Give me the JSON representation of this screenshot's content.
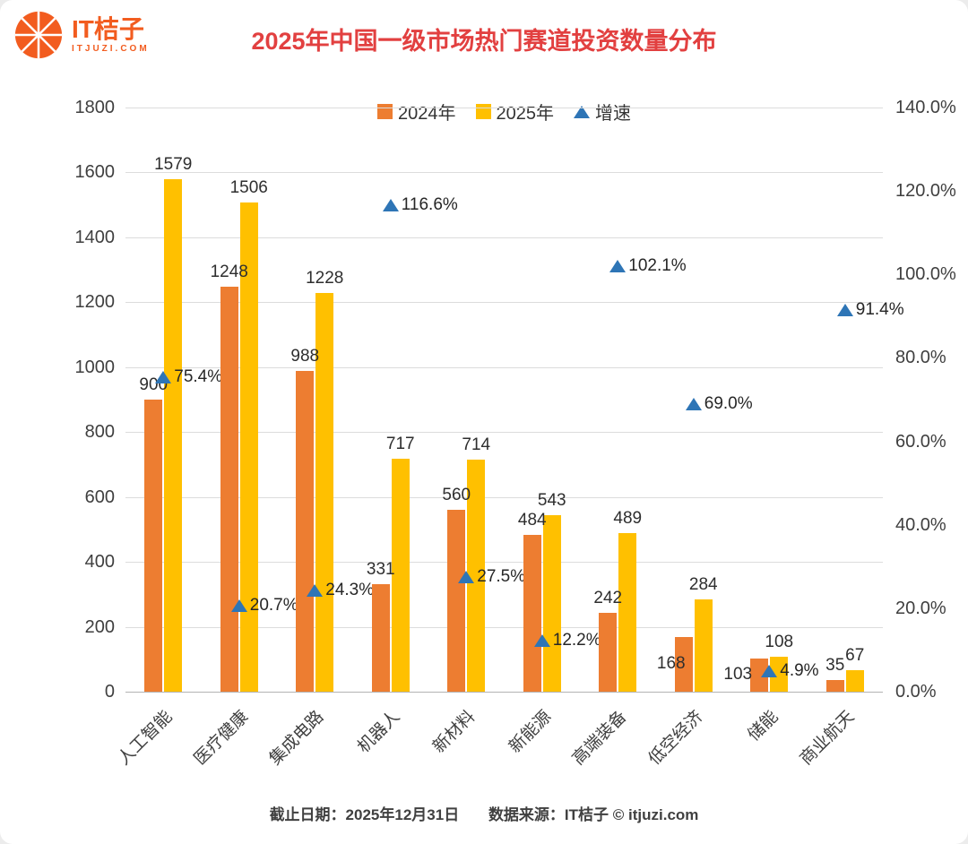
{
  "logo": {
    "name": "IT桔子",
    "domain": "ITJUZI.COM",
    "color": "#F25C1F"
  },
  "title": {
    "prefix": "2025年中国一级市场热门赛道投资",
    "bold": "数量",
    "suffix": "分布"
  },
  "footer": {
    "date": "截止日期：2025年12月31日",
    "source": "数据来源：IT桔子 © itjuzi.com"
  },
  "chart_data": {
    "type": "bar",
    "title": "2025年中国一级市场热门赛道投资数量分布",
    "categories": [
      "人工智能",
      "医疗健康",
      "集成电路",
      "机器人",
      "新材料",
      "新能源",
      "高端装备",
      "低空经济",
      "储能",
      "商业航天"
    ],
    "series": [
      {
        "name": "2024年",
        "kind": "bar",
        "color": "#ED7D31",
        "axis": "left",
        "values": [
          900,
          1248,
          988,
          331,
          560,
          484,
          242,
          168,
          103,
          35
        ]
      },
      {
        "name": "2025年",
        "kind": "bar",
        "color": "#FFC000",
        "axis": "left",
        "values": [
          1579,
          1506,
          1228,
          717,
          714,
          543,
          489,
          284,
          108,
          67
        ]
      },
      {
        "name": "增速",
        "kind": "scatter-triangle",
        "color": "#2E75B6",
        "axis": "right",
        "values_pct": [
          75.4,
          20.7,
          24.3,
          116.6,
          27.5,
          12.2,
          102.1,
          69.0,
          4.9,
          91.4
        ],
        "labels": [
          "75.4%",
          "20.7%",
          "24.3%",
          "116.6%",
          "27.5%",
          "12.2%",
          "102.1%",
          "69.0%",
          "4.9%",
          "91.4%"
        ]
      }
    ],
    "left_axis": {
      "min": 0,
      "max": 1800,
      "step": 200,
      "ticks": [
        "0",
        "200",
        "400",
        "600",
        "800",
        "1000",
        "1200",
        "1400",
        "1600",
        "1800"
      ]
    },
    "right_axis": {
      "min": 0,
      "max": 140,
      "step": 20,
      "ticks": [
        "0.0%",
        "20.0%",
        "40.0%",
        "60.0%",
        "80.0%",
        "100.0%",
        "120.0%",
        "140.0%"
      ]
    },
    "legend": [
      "2024年",
      "2025年",
      "增速"
    ],
    "legend_position": "top",
    "grid": true
  }
}
